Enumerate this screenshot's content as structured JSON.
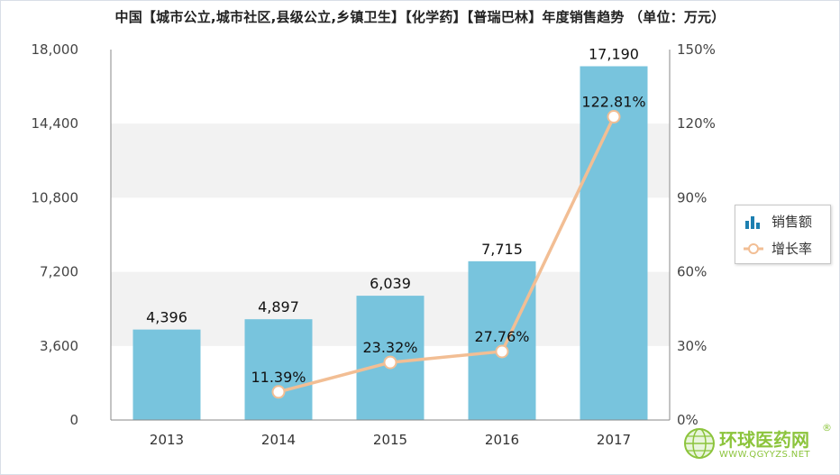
{
  "chart_data": {
    "type": "bar",
    "title": "中国【城市公立,城市社区,县级公立,乡镇卫生】【化学药】【普瑞巴林】年度销售趋势 （单位：万元）",
    "categories": [
      "2013",
      "2014",
      "2015",
      "2016",
      "2017"
    ],
    "series": [
      {
        "name": "销售额",
        "type": "bar",
        "axis": "left",
        "color": "#78c4dd",
        "values": [
          4396,
          4897,
          6039,
          7715,
          17190
        ],
        "labels": [
          "4,396",
          "4,897",
          "6,039",
          "7,715",
          "17,190"
        ]
      },
      {
        "name": "增长率",
        "type": "line",
        "axis": "right",
        "color": "#f2be94",
        "values": [
          null,
          11.39,
          23.32,
          27.76,
          122.81
        ],
        "labels": [
          "",
          "11.39%",
          "23.32%",
          "27.76%",
          "122.81%"
        ]
      }
    ],
    "y_left": {
      "ylim": [
        0,
        18000
      ],
      "ticks": [
        0,
        3600,
        7200,
        10800,
        14400,
        18000
      ],
      "tick_labels": [
        "0",
        "3,600",
        "7,200",
        "10,800",
        "14,400",
        "18,000"
      ]
    },
    "y_right": {
      "ylim": [
        0,
        150
      ],
      "ticks": [
        0,
        30,
        60,
        90,
        120,
        150
      ],
      "tick_labels": [
        "0%",
        "30%",
        "60%",
        "90%",
        "120%",
        "150%"
      ]
    },
    "xlabel": "",
    "ylabel": "",
    "legend_position": "right",
    "grid": "alternating horizontal bands"
  },
  "watermark": {
    "name": "环球医药网",
    "mark": "®",
    "url": "WWW.QGYYZS.NET"
  }
}
